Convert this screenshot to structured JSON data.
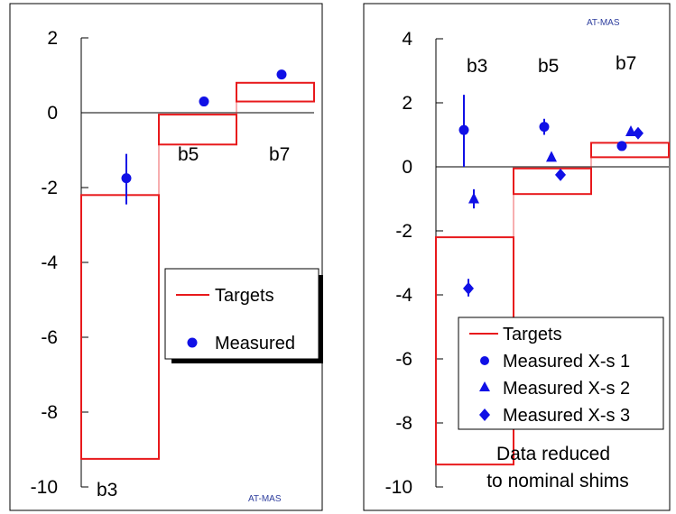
{
  "chart_data": [
    {
      "type": "scatter",
      "ylim": [
        -10,
        2
      ],
      "yticks": [
        2,
        0,
        -2,
        -4,
        -6,
        -8,
        -10
      ],
      "categories": [
        "b3",
        "b5",
        "b7"
      ],
      "targets": [
        {
          "category": "b3",
          "low": -9.25,
          "high": -2.2
        },
        {
          "category": "b5",
          "low": -0.85,
          "high": -0.05
        },
        {
          "category": "b7",
          "low": 0.3,
          "high": 0.8
        }
      ],
      "series": [
        {
          "name": "Measured",
          "marker": "circle",
          "color": "#1010e6",
          "points": [
            {
              "category": "b3",
              "y": -1.75,
              "err_low": -2.45,
              "err_high": -1.1
            },
            {
              "category": "b5",
              "y": 0.3
            },
            {
              "category": "b7",
              "y": 1.02
            }
          ]
        }
      ],
      "legend": {
        "placement": "center-right",
        "entries": [
          "Targets",
          "Measured"
        ]
      },
      "watermark": "AT-MAS",
      "grid": false
    },
    {
      "type": "scatter",
      "ylim": [
        -10,
        4
      ],
      "yticks": [
        4,
        2,
        0,
        -2,
        -4,
        -6,
        -8,
        -10
      ],
      "categories": [
        "b3",
        "b5",
        "b7"
      ],
      "targets": [
        {
          "category": "b3",
          "low": -9.3,
          "high": -2.2
        },
        {
          "category": "b5",
          "low": -0.85,
          "high": -0.05
        },
        {
          "category": "b7",
          "low": 0.3,
          "high": 0.75
        }
      ],
      "series": [
        {
          "name": "Measured X-s 1",
          "marker": "circle",
          "color": "#1010e6",
          "points": [
            {
              "category": "b3",
              "y": 1.15,
              "err_low": 0.0,
              "err_high": 2.25
            },
            {
              "category": "b5",
              "y": 1.25,
              "err_low": 1.0,
              "err_high": 1.5
            },
            {
              "category": "b7",
              "y": 0.65
            }
          ]
        },
        {
          "name": "Measured X-s 2",
          "marker": "triangle",
          "color": "#1010e6",
          "points": [
            {
              "category": "b3",
              "y": -1.0,
              "err_low": -1.3,
              "err_high": -0.7
            },
            {
              "category": "b5",
              "y": 0.3
            },
            {
              "category": "b7",
              "y": 1.1
            }
          ]
        },
        {
          "name": "Measured X-s 3",
          "marker": "diamond",
          "color": "#1010e6",
          "points": [
            {
              "category": "b3",
              "y": -3.8,
              "err_low": -4.05,
              "err_high": -3.5
            },
            {
              "category": "b5",
              "y": -0.25
            },
            {
              "category": "b7",
              "y": 1.05
            }
          ]
        }
      ],
      "legend": {
        "placement": "bottom-right",
        "entries": [
          "Targets",
          "Measured X-s 1",
          "Measured X-s 2",
          "Measured X-s 3"
        ]
      },
      "annotation": [
        "Data reduced",
        "to nominal shims"
      ],
      "watermark": "AT-MAS",
      "grid": false
    }
  ]
}
